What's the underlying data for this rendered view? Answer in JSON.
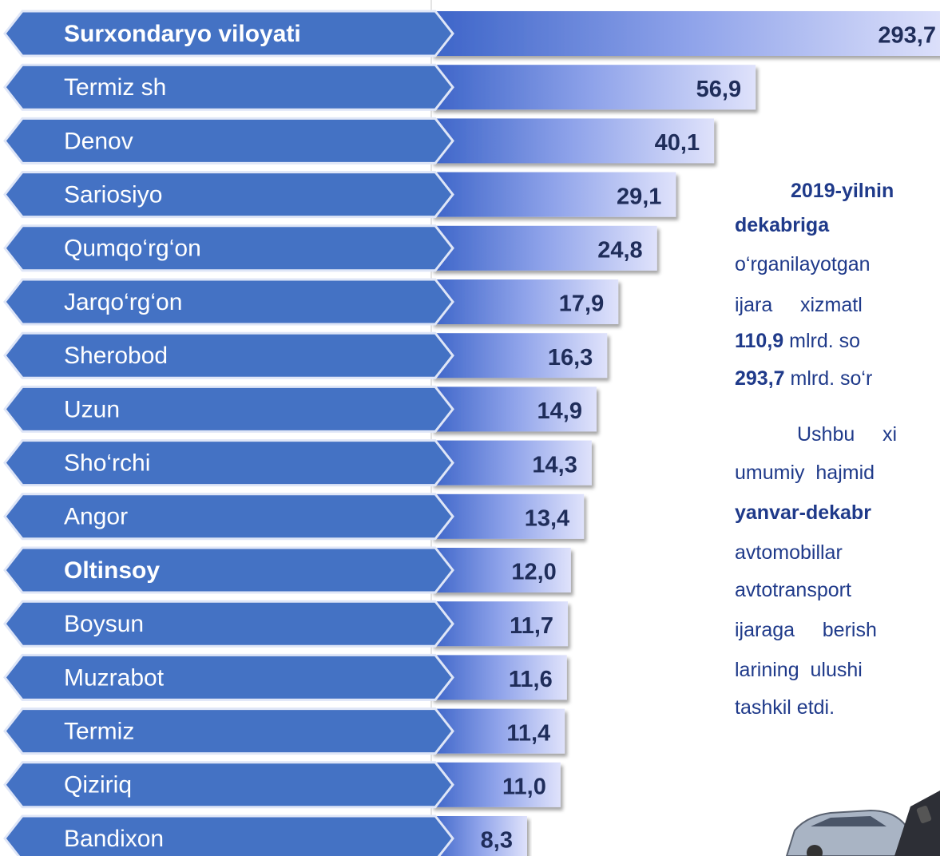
{
  "chart_data": {
    "type": "bar",
    "categories": [
      "Surxondaryo viloyati",
      "Termiz sh",
      "Denov",
      "Sariosiyo",
      "Qumqo‘rg‘on",
      "Jarqo‘rg‘on",
      "Sherobod",
      "Uzun",
      "Sho‘rchi",
      "Angor",
      "Oltinsoy",
      "Boysun",
      "Muzrabot",
      "Termiz",
      "Qiziriq",
      "Bandixon"
    ],
    "values": [
      293.7,
      56.9,
      40.1,
      29.1,
      24.8,
      17.9,
      16.3,
      14.9,
      14.3,
      13.4,
      12.0,
      11.7,
      11.6,
      11.4,
      11.0,
      8.3
    ],
    "value_labels": [
      "293,7",
      "56,9",
      "40,1",
      "29,1",
      "24,8",
      "17,9",
      "16,3",
      "14,9",
      "14,3",
      "13,4",
      "12,0",
      "11,7",
      "11,6",
      "11,4",
      "11,0",
      "8,3"
    ],
    "bold": [
      true,
      false,
      false,
      false,
      false,
      false,
      false,
      false,
      false,
      false,
      true,
      false,
      false,
      false,
      false,
      false
    ],
    "color": "#4472c4"
  },
  "text_panel": {
    "lines": [
      [
        {
          "text": "2019-yilnin",
          "bold": true
        }
      ],
      [
        {
          "text": "dekabriga",
          "bold": true
        }
      ],
      [
        {
          "text": "o‘rganilayotgan",
          "bold": false
        }
      ],
      [
        {
          "text": "ijara     xizmatl",
          "bold": false
        }
      ],
      [
        {
          "text": "110,9",
          "bold": true
        },
        {
          "text": " mlrd. so",
          "bold": false
        }
      ],
      [
        {
          "text": "293,7",
          "bold": true
        },
        {
          "text": " mlrd. so‘r",
          "bold": false
        }
      ],
      [
        {
          "text": "Ushbu     xi",
          "bold": false
        }
      ],
      [
        {
          "text": "umumiy  hajmid",
          "bold": false
        }
      ],
      [
        {
          "text": "yanvar-dekabr",
          "bold": true
        }
      ],
      [
        {
          "text": "avtomobillar",
          "bold": false
        }
      ],
      [
        {
          "text": "avtotransport",
          "bold": false
        }
      ],
      [
        {
          "text": "ijaraga     berish",
          "bold": false
        }
      ],
      [
        {
          "text": "larining  ulushi",
          "bold": false
        }
      ],
      [
        {
          "text": "tashkil etdi.",
          "bold": false
        }
      ]
    ]
  }
}
